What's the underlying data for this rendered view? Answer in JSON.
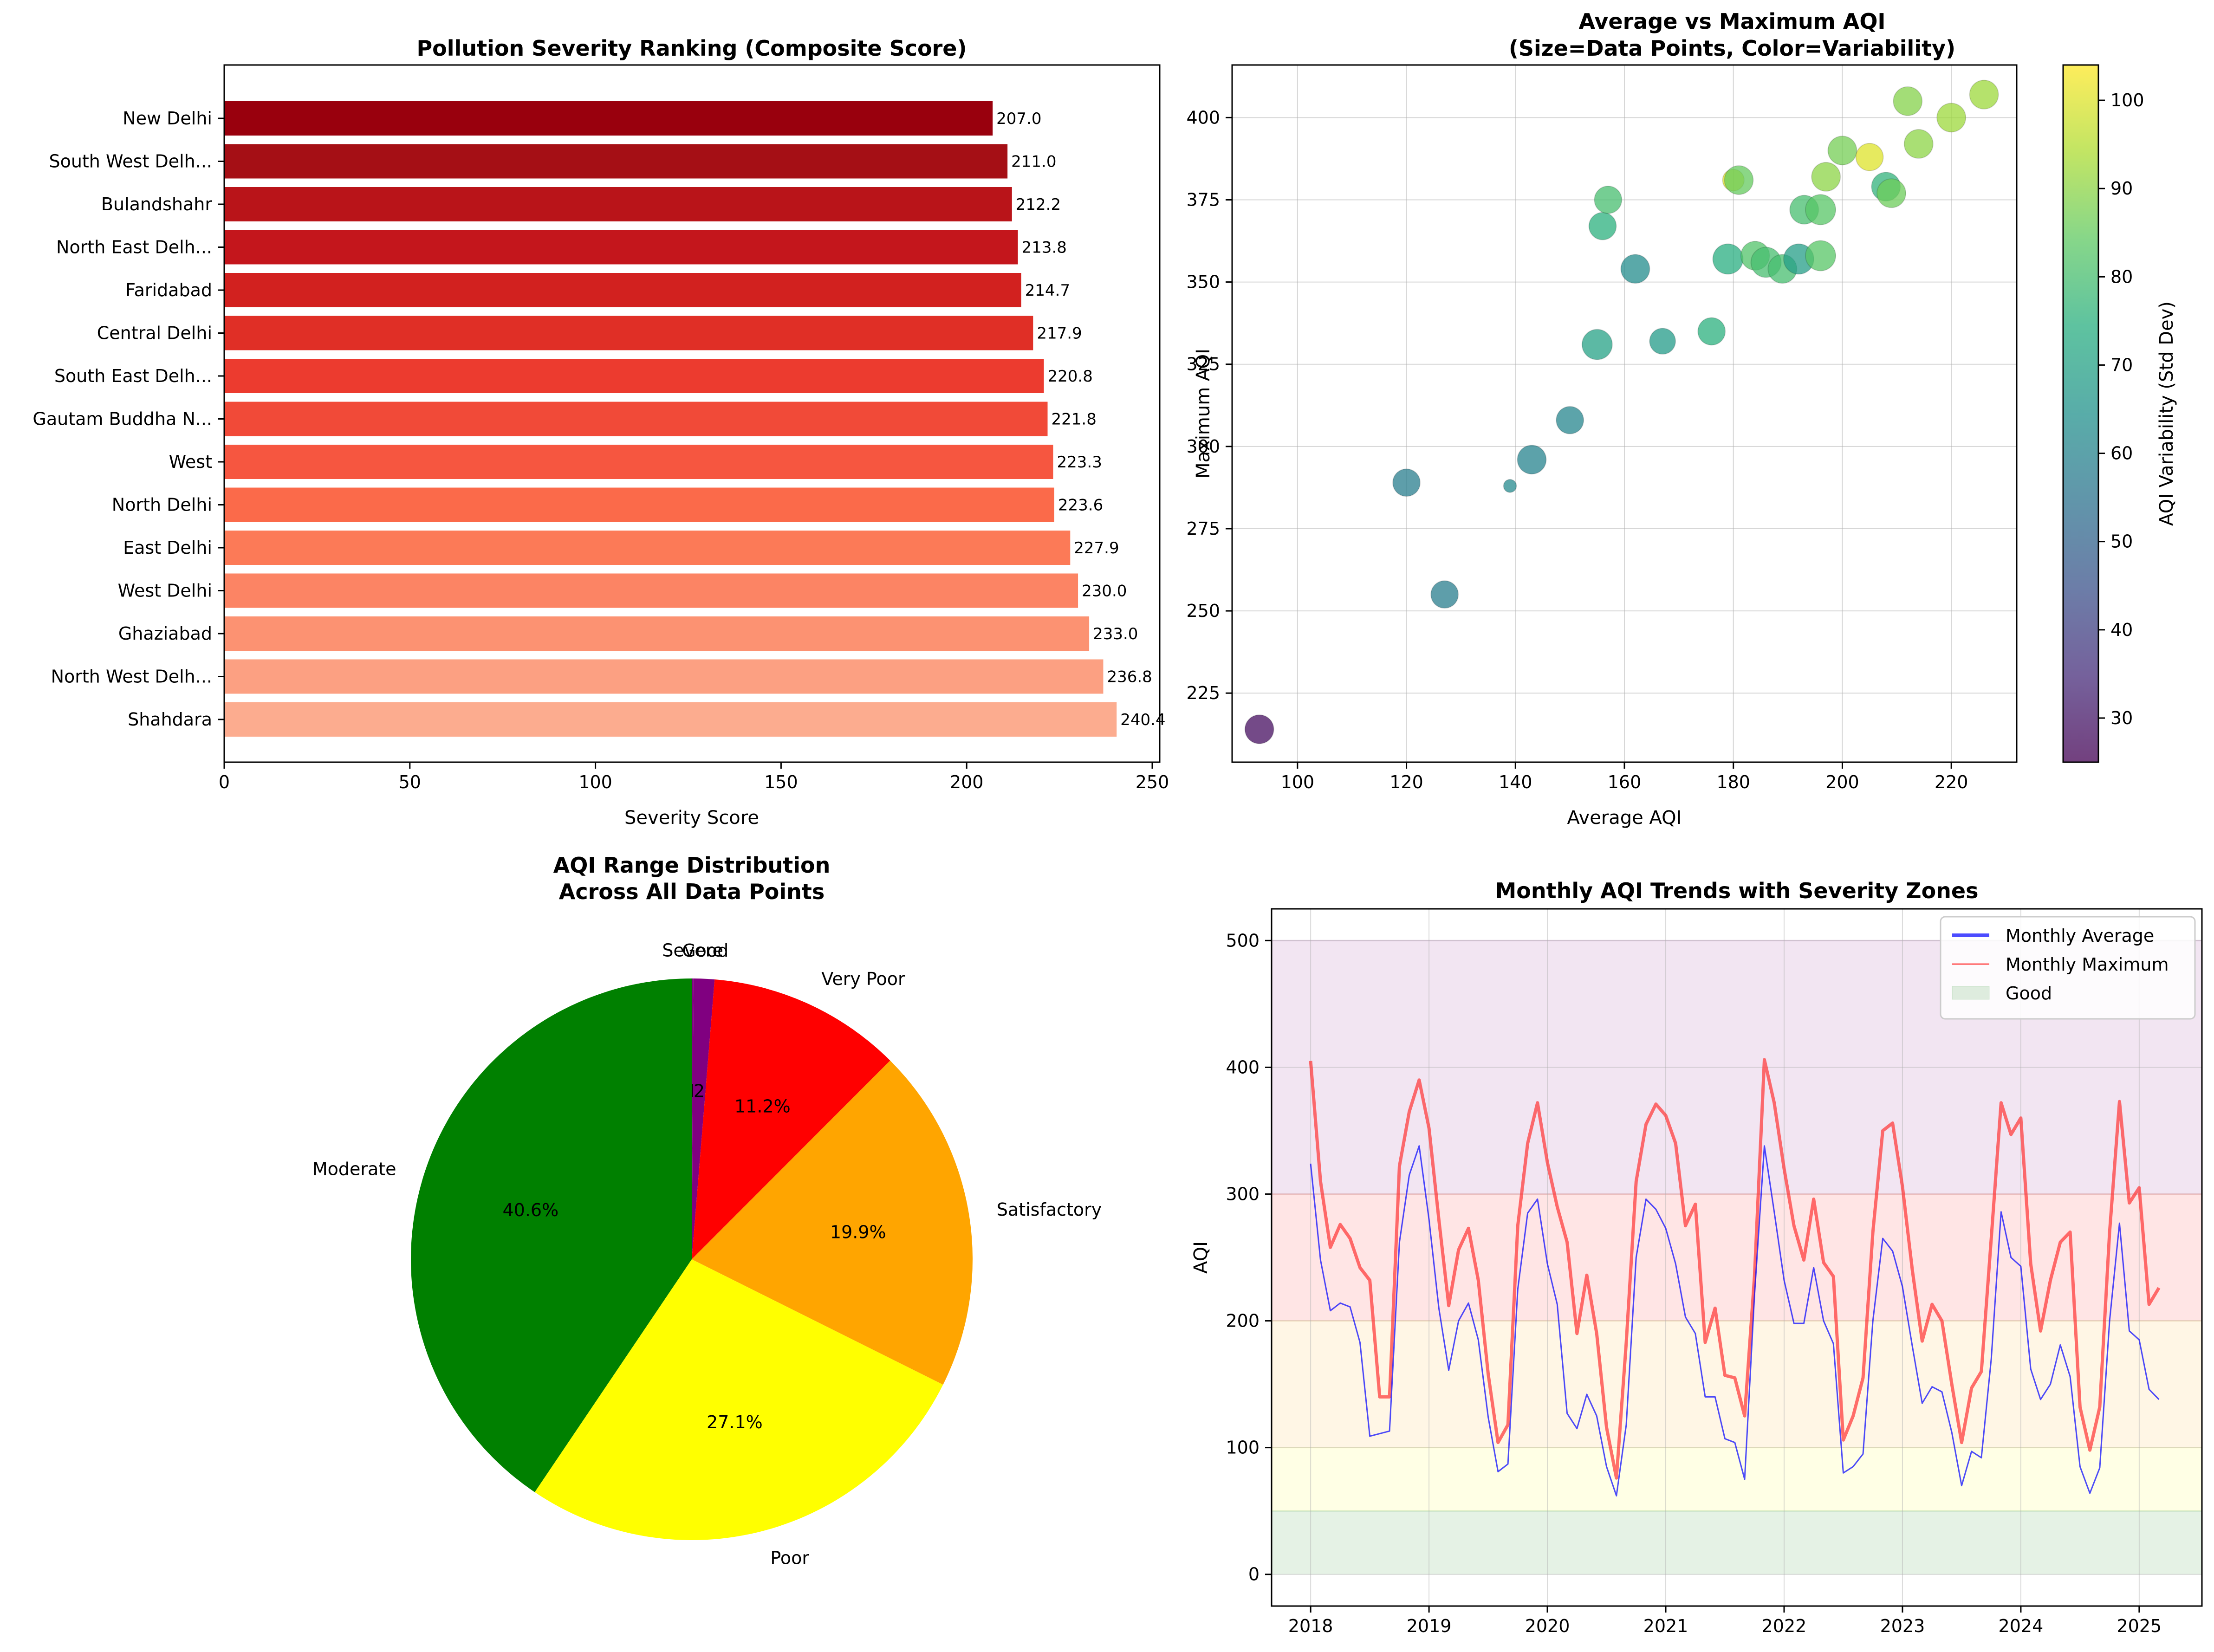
{
  "charts": [
    {
      "type": "bar",
      "orientation": "horizontal",
      "title": "Pollution Severity Ranking (Composite Score)",
      "xlabel": "Severity Score",
      "xlim": [
        0,
        252
      ],
      "xticks": [
        0,
        50,
        100,
        150,
        200,
        250
      ],
      "categories": [
        "New Delhi",
        "South West Delh...",
        "Bulandshahr",
        "North East Delh...",
        "Faridabad",
        "Central Delhi",
        "South East Delh...",
        "Gautam Buddha N...",
        "West",
        "North Delhi",
        "East Delhi",
        "West Delhi",
        "Ghaziabad",
        "North West Delh...",
        "Shahdara"
      ],
      "values": [
        207.0,
        211.0,
        212.2,
        213.8,
        214.7,
        217.9,
        220.8,
        221.8,
        223.3,
        223.6,
        227.9,
        230.0,
        233.0,
        236.8,
        240.4
      ],
      "value_labels": [
        "207.0",
        "211.0",
        "212.2",
        "213.8",
        "214.7",
        "217.9",
        "220.8",
        "221.8",
        "223.3",
        "223.6",
        "227.9",
        "230.0",
        "233.0",
        "236.8",
        "240.4"
      ],
      "colors": [
        "#99000d",
        "#a50f15",
        "#b91419",
        "#c4161c",
        "#d2211f",
        "#e02f26",
        "#ec3b2f",
        "#f14a38",
        "#f65640",
        "#fb6a4a",
        "#fc7a57",
        "#fc8464",
        "#fc9272",
        "#fca082",
        "#fcac8f"
      ]
    },
    {
      "type": "scatter",
      "title": "Average vs Maximum AQI",
      "subtitle": "(Size=Data Points, Color=Variability)",
      "xlabel": "Average AQI",
      "ylabel": "Maximum AQI",
      "xlim": [
        88,
        232
      ],
      "ylim": [
        204,
        416
      ],
      "xticks": [
        100,
        120,
        140,
        160,
        180,
        200,
        220
      ],
      "yticks": [
        225,
        250,
        275,
        300,
        325,
        350,
        375,
        400
      ],
      "grid": true,
      "colorbar": {
        "label": "AQI Variability (Std Dev)",
        "range": [
          25,
          104
        ],
        "ticks": [
          30,
          40,
          50,
          60,
          70,
          80,
          90,
          100
        ]
      },
      "points": [
        {
          "x": 93,
          "y": 214,
          "c": 28,
          "s": 1.0
        },
        {
          "x": 120,
          "y": 289,
          "c": 58,
          "s": 0.95
        },
        {
          "x": 127,
          "y": 255,
          "c": 58,
          "s": 0.95
        },
        {
          "x": 139,
          "y": 288,
          "c": 62,
          "s": 0.45
        },
        {
          "x": 143,
          "y": 296,
          "c": 60,
          "s": 1.0
        },
        {
          "x": 150,
          "y": 308,
          "c": 61,
          "s": 0.95
        },
        {
          "x": 155,
          "y": 331,
          "c": 70,
          "s": 1.05
        },
        {
          "x": 156,
          "y": 367,
          "c": 75,
          "s": 0.95
        },
        {
          "x": 157,
          "y": 375,
          "c": 80,
          "s": 0.95
        },
        {
          "x": 162,
          "y": 354,
          "c": 63,
          "s": 1.0
        },
        {
          "x": 167,
          "y": 332,
          "c": 68,
          "s": 0.9
        },
        {
          "x": 176,
          "y": 335,
          "c": 75,
          "s": 0.95
        },
        {
          "x": 179,
          "y": 357,
          "c": 74,
          "s": 1.05
        },
        {
          "x": 180,
          "y": 381,
          "c": 100,
          "s": 0.75
        },
        {
          "x": 181,
          "y": 381,
          "c": 85,
          "s": 1.0
        },
        {
          "x": 184,
          "y": 358,
          "c": 82,
          "s": 1.0
        },
        {
          "x": 186,
          "y": 356,
          "c": 80,
          "s": 1.05
        },
        {
          "x": 189,
          "y": 354,
          "c": 80,
          "s": 1.0
        },
        {
          "x": 192,
          "y": 357,
          "c": 69,
          "s": 1.05
        },
        {
          "x": 193,
          "y": 372,
          "c": 80,
          "s": 1.0
        },
        {
          "x": 196,
          "y": 372,
          "c": 83,
          "s": 1.05
        },
        {
          "x": 196,
          "y": 358,
          "c": 83,
          "s": 1.05
        },
        {
          "x": 197,
          "y": 382,
          "c": 90,
          "s": 1.0
        },
        {
          "x": 200,
          "y": 390,
          "c": 87,
          "s": 1.0
        },
        {
          "x": 205,
          "y": 388,
          "c": 100,
          "s": 0.95
        },
        {
          "x": 208,
          "y": 379,
          "c": 76,
          "s": 1.0
        },
        {
          "x": 209,
          "y": 377,
          "c": 86,
          "s": 1.0
        },
        {
          "x": 212,
          "y": 405,
          "c": 89,
          "s": 1.0
        },
        {
          "x": 214,
          "y": 392,
          "c": 90,
          "s": 1.0
        },
        {
          "x": 220,
          "y": 400,
          "c": 92,
          "s": 1.0
        },
        {
          "x": 226,
          "y": 407,
          "c": 92,
          "s": 1.0
        }
      ]
    },
    {
      "type": "pie",
      "title": "AQI Range Distribution",
      "subtitle": "Across All Data Points",
      "slices": [
        {
          "label": "Severe",
          "pct": 0.1,
          "pct_label": "0.1%",
          "color": "#800080"
        },
        {
          "label": "Good",
          "pct": 1.2,
          "pct_label": "1.2%",
          "color": "#800080"
        },
        {
          "label": "Very Poor",
          "pct": 11.2,
          "pct_label": "11.2%",
          "color": "#ff0000"
        },
        {
          "label": "Satisfactory",
          "pct": 19.9,
          "pct_label": "19.9%",
          "color": "#ffa500"
        },
        {
          "label": "Poor",
          "pct": 27.1,
          "pct_label": "27.1%",
          "color": "#ffff00"
        },
        {
          "label": "Moderate",
          "pct": 40.6,
          "pct_label": "40.6%",
          "color": "#008000"
        }
      ]
    },
    {
      "type": "line",
      "title": "Monthly AQI Trends with Severity Zones",
      "ylabel": "AQI",
      "xlim": [
        2017.67,
        2025.53
      ],
      "ylim": [
        -25,
        525
      ],
      "xticks": [
        "2018",
        "2019",
        "2020",
        "2021",
        "2022",
        "2023",
        "2024",
        "2025"
      ],
      "yticks": [
        0,
        100,
        200,
        300,
        400,
        500
      ],
      "grid": true,
      "x_start": "2018-01",
      "zones": [
        {
          "from": 0,
          "to": 50,
          "color": "#008000"
        },
        {
          "from": 50,
          "to": 100,
          "color": "#ffff00"
        },
        {
          "from": 100,
          "to": 200,
          "color": "#ffa500"
        },
        {
          "from": 200,
          "to": 300,
          "color": "#ff0000"
        },
        {
          "from": 300,
          "to": 500,
          "color": "#800080"
        }
      ],
      "legend": {
        "placement": "top-right",
        "entries": [
          "Monthly Average",
          "Monthly Maximum",
          "Good"
        ]
      },
      "series": [
        {
          "name": "Monthly Average",
          "color": "#0000ff",
          "values": [
            324,
            248,
            208,
            214,
            211,
            183,
            109,
            111,
            113,
            262,
            315,
            338,
            280,
            210,
            161,
            200,
            214,
            185,
            124,
            81,
            87,
            225,
            285,
            296,
            245,
            213,
            127,
            115,
            142,
            125,
            85,
            62,
            118,
            250,
            296,
            288,
            273,
            245,
            203,
            190,
            140,
            140,
            107,
            104,
            75,
            220,
            338,
            286,
            232,
            198,
            198,
            242,
            200,
            182,
            80,
            85,
            95,
            200,
            265,
            255,
            227,
            180,
            135,
            148,
            144,
            112,
            70,
            97,
            92,
            170,
            286,
            250,
            243,
            162,
            138,
            150,
            181,
            156,
            85,
            64,
            84,
            200,
            277,
            192,
            185,
            146,
            138
          ]
        },
        {
          "name": "Monthly Maximum",
          "color": "#ff3333",
          "values": [
            405,
            310,
            258,
            276,
            265,
            242,
            232,
            140,
            140,
            322,
            365,
            390,
            352,
            280,
            212,
            256,
            273,
            232,
            158,
            104,
            118,
            275,
            340,
            372,
            325,
            290,
            262,
            190,
            236,
            190,
            116,
            76,
            183,
            310,
            355,
            371,
            362,
            340,
            275,
            292,
            183,
            210,
            157,
            155,
            125,
            235,
            406,
            372,
            320,
            275,
            248,
            296,
            246,
            235,
            106,
            125,
            155,
            270,
            350,
            356,
            306,
            240,
            184,
            213,
            200,
            150,
            104,
            147,
            160,
            265,
            372,
            347,
            360,
            245,
            192,
            232,
            262,
            270,
            132,
            98,
            132,
            270,
            373,
            293,
            305,
            213,
            226
          ]
        }
      ]
    }
  ]
}
